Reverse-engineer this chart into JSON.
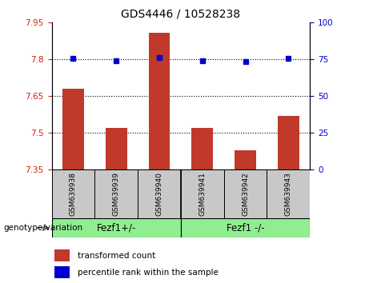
{
  "title": "GDS4446 / 10528238",
  "categories": [
    "GSM639938",
    "GSM639939",
    "GSM639940",
    "GSM639941",
    "GSM639942",
    "GSM639943"
  ],
  "bar_values": [
    7.68,
    7.52,
    7.91,
    7.52,
    7.43,
    7.57
  ],
  "dot_values": [
    75.5,
    74.0,
    76.5,
    74.0,
    73.5,
    75.5
  ],
  "bar_color": "#c0392b",
  "dot_color": "#0000cc",
  "ylim_left": [
    7.35,
    7.95
  ],
  "ylim_right": [
    0,
    100
  ],
  "yticks_left": [
    7.35,
    7.5,
    7.65,
    7.8,
    7.95
  ],
  "yticks_right": [
    0,
    25,
    50,
    75,
    100
  ],
  "hlines": [
    7.5,
    7.65,
    7.8
  ],
  "group1_label": "Fezf1+/-",
  "group2_label": "Fezf1 -/-",
  "genotype_label": "genotype/variation",
  "legend_bar": "transformed count",
  "legend_dot": "percentile rank within the sample",
  "bar_base": 7.35,
  "bar_width": 0.5,
  "group1_color": "#90ee90",
  "group2_color": "#90ee90",
  "xtick_bg": "#c8c8c8",
  "title_fontsize": 10,
  "tick_fontsize": 7.5,
  "legend_fontsize": 7.5,
  "group_fontsize": 8.5,
  "genotype_fontsize": 7.5
}
